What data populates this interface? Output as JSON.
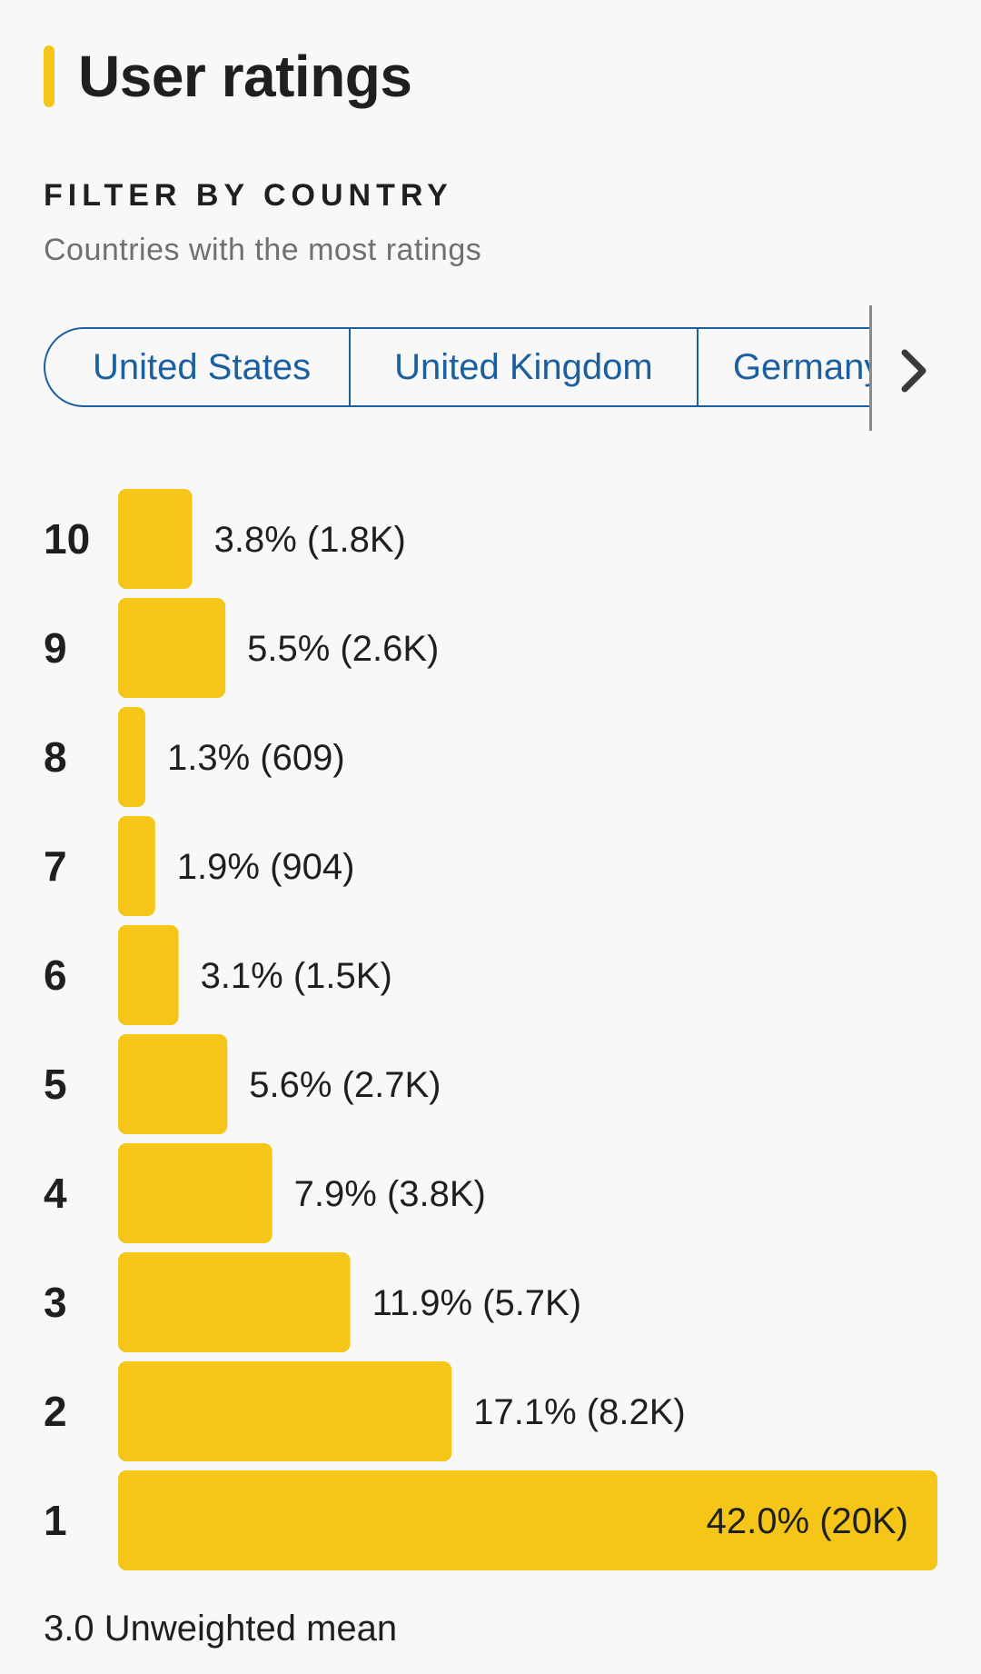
{
  "section": {
    "title": "User ratings"
  },
  "filter": {
    "heading": "FILTER BY COUNTRY",
    "subtitle": "Countries with the most ratings",
    "chips": [
      "United States",
      "United Kingdom",
      "Germany"
    ]
  },
  "icons": {
    "next": "chevron-right-icon"
  },
  "colors": {
    "accent": "#f5c518",
    "chip": "#1a5fa0",
    "text": "#1f1f1f",
    "muted": "#707070",
    "background": "#f8f8f8"
  },
  "chart_data": {
    "type": "bar",
    "orientation": "horizontal",
    "categories": [
      "10",
      "9",
      "8",
      "7",
      "6",
      "5",
      "4",
      "3",
      "2",
      "1"
    ],
    "values": [
      3.8,
      5.5,
      1.3,
      1.9,
      3.1,
      5.6,
      7.9,
      11.9,
      17.1,
      42.0
    ],
    "labels": [
      "3.8% (1.8K)",
      "5.5% (2.6K)",
      "1.3% (609)",
      "1.9% (904)",
      "3.1% (1.5K)",
      "5.6% (2.7K)",
      "7.9% (3.8K)",
      "11.9% (5.7K)",
      "17.1% (8.2K)",
      "42.0% (20K)"
    ],
    "unit": "%",
    "xlim": [
      0,
      42.0
    ],
    "grid": false,
    "legend": "none"
  },
  "footer": {
    "mean": "3.0 Unweighted mean"
  }
}
